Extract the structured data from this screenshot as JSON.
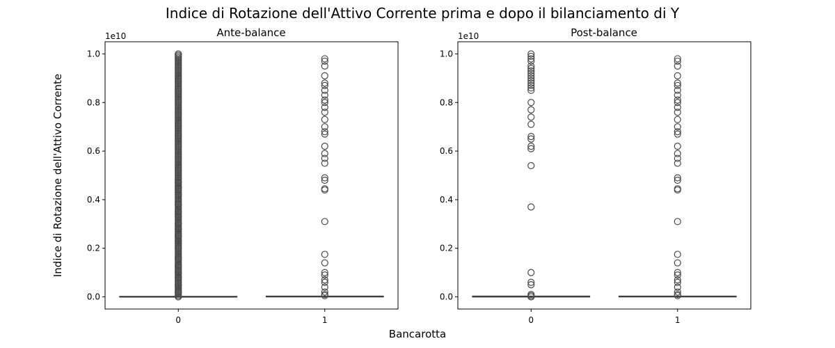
{
  "chart_data": {
    "type": "box",
    "title": "Indice di Rotazione dell'Attivo Corrente prima e dopo il bilanciamento di Y",
    "xlabel": "Bancarotta",
    "ylabel": "Indice di Rotazione dell'Attivo Corrente",
    "y_offset_label": "1e10",
    "ylim": [
      -0.05,
      1.05
    ],
    "y_ticks": [
      0.0,
      0.2,
      0.4,
      0.6,
      0.8,
      1.0
    ],
    "y_tick_labels": [
      "0.0",
      "0.2",
      "0.4",
      "0.6",
      "0.8",
      "1.0"
    ],
    "grid": false,
    "box_color": "#3f3f3f",
    "flier_color": "#4a4a4a",
    "panels": [
      {
        "title": "Ante-balance",
        "categories": [
          "0",
          "1"
        ],
        "boxes": [
          {
            "category": "0",
            "q1": 0.0,
            "median": 0.0,
            "q3": 0.002,
            "whisker_low": 0.0,
            "whisker_high": 0.005,
            "dense_flier_column": [
              0.0,
              1.0
            ],
            "fliers": [
              0.02,
              0.05,
              0.08,
              0.1,
              0.13,
              0.16,
              0.2,
              0.23,
              0.25,
              0.28,
              0.3,
              0.33,
              0.35,
              0.38,
              0.42,
              0.45,
              0.47
            ]
          },
          {
            "category": "1",
            "q1": 0.0,
            "median": 0.001,
            "q3": 0.003,
            "whisker_low": 0.0,
            "whisker_high": 0.006,
            "fliers": [
              0.005,
              0.01,
              0.02,
              0.04,
              0.06,
              0.07,
              0.09,
              0.1,
              0.14,
              0.175,
              0.31,
              0.44,
              0.445,
              0.48,
              0.49,
              0.55,
              0.57,
              0.59,
              0.62,
              0.67,
              0.68,
              0.7,
              0.73,
              0.76,
              0.78,
              0.8,
              0.81,
              0.83,
              0.85,
              0.87,
              0.88,
              0.91,
              0.95,
              0.97,
              0.98
            ]
          }
        ]
      },
      {
        "title": "Post-balance",
        "categories": [
          "0",
          "1"
        ],
        "boxes": [
          {
            "category": "0",
            "q1": 0.0,
            "median": 0.0,
            "q3": 0.003,
            "whisker_low": 0.0,
            "whisker_high": 0.005,
            "fliers": [
              0.0,
              0.005,
              0.01,
              0.05,
              0.06,
              0.1,
              0.37,
              0.54,
              0.61,
              0.62,
              0.65,
              0.66,
              0.71,
              0.74,
              0.77,
              0.8,
              0.85,
              0.86,
              0.87,
              0.88,
              0.89,
              0.9,
              0.91,
              0.92,
              0.93,
              0.94,
              0.95,
              0.97,
              0.98,
              0.99,
              1.0
            ]
          },
          {
            "category": "1",
            "q1": 0.0,
            "median": 0.001,
            "q3": 0.003,
            "whisker_low": 0.0,
            "whisker_high": 0.006,
            "fliers": [
              0.005,
              0.01,
              0.02,
              0.04,
              0.06,
              0.07,
              0.09,
              0.1,
              0.14,
              0.175,
              0.31,
              0.44,
              0.445,
              0.48,
              0.49,
              0.55,
              0.57,
              0.59,
              0.62,
              0.67,
              0.68,
              0.7,
              0.73,
              0.76,
              0.78,
              0.8,
              0.81,
              0.83,
              0.85,
              0.87,
              0.88,
              0.91,
              0.95,
              0.97,
              0.98
            ]
          }
        ]
      }
    ]
  }
}
